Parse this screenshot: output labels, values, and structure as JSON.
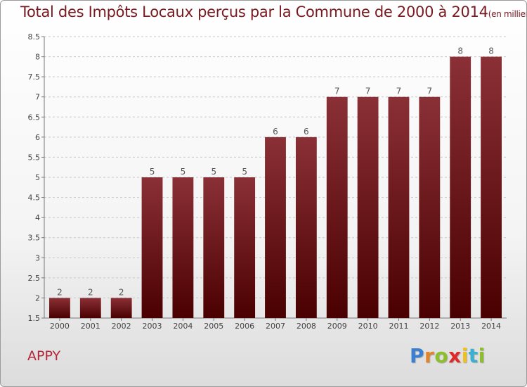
{
  "title": "Total des Impôts Locaux perçus par la Commune de 2000 à 2014",
  "title_unit": "(en milliers d'€)",
  "commune": "APPY",
  "logo_text": "Proxiti",
  "colors": {
    "bar_top": "#8a3036",
    "bar_bottom": "#4a0000",
    "title": "#7a1a20",
    "commune": "#b3263a"
  },
  "chart_data": {
    "type": "bar",
    "categories": [
      "2000",
      "2001",
      "2002",
      "2003",
      "2004",
      "2005",
      "2006",
      "2007",
      "2008",
      "2009",
      "2010",
      "2011",
      "2012",
      "2013",
      "2014"
    ],
    "values": [
      2,
      2,
      2,
      5,
      5,
      5,
      5,
      6,
      6,
      7,
      7,
      7,
      7,
      8,
      8
    ],
    "data_labels": [
      "2",
      "2",
      "2",
      "5",
      "5",
      "5",
      "5",
      "6",
      "6",
      "7",
      "7",
      "7",
      "7",
      "8",
      "8"
    ],
    "ylim": [
      1.5,
      8.5
    ],
    "yticks": [
      1.5,
      2,
      2.5,
      3,
      3.5,
      4,
      4.5,
      5,
      5.5,
      6,
      6.5,
      7,
      7.5,
      8,
      8.5
    ],
    "ytick_labels": [
      "1.5",
      "2",
      "2.5",
      "3",
      "3.5",
      "4",
      "4.5",
      "5",
      "5.5",
      "6",
      "6.5",
      "7",
      "7.5",
      "8",
      "8.5"
    ],
    "grid": "horizontal-dashed",
    "legend": "none"
  }
}
